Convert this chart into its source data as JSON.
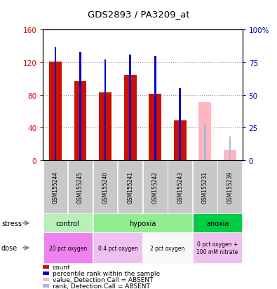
{
  "title": "GDS2893 / PA3209_at",
  "samples": [
    "GSM155244",
    "GSM155245",
    "GSM155240",
    "GSM155241",
    "GSM155242",
    "GSM155243",
    "GSM155231",
    "GSM155239"
  ],
  "count_values": [
    121,
    97,
    83,
    105,
    81,
    49,
    null,
    null
  ],
  "count_absent": [
    null,
    null,
    null,
    null,
    null,
    null,
    71,
    13
  ],
  "percentile_values": [
    87,
    83,
    77,
    81,
    80,
    55,
    null,
    null
  ],
  "percentile_absent": [
    null,
    null,
    null,
    null,
    null,
    null,
    27,
    18
  ],
  "ylim_left": [
    0,
    160
  ],
  "ylim_right": [
    0,
    100
  ],
  "yticks_left": [
    0,
    40,
    80,
    120,
    160
  ],
  "yticks_right": [
    0,
    25,
    50,
    75,
    100
  ],
  "ytick_labels_left": [
    "0",
    "40",
    "80",
    "120",
    "160"
  ],
  "ytick_labels_right": [
    "0",
    "25",
    "50",
    "75",
    "100%"
  ],
  "stress_groups": [
    {
      "label": "control",
      "start": 0,
      "end": 2,
      "color": "#b8f0b8"
    },
    {
      "label": "hypoxia",
      "start": 2,
      "end": 6,
      "color": "#90ee90"
    },
    {
      "label": "anoxia",
      "start": 6,
      "end": 8,
      "color": "#00dd00"
    }
  ],
  "dose_groups": [
    {
      "label": "20 pct oxygen",
      "start": 0,
      "end": 2,
      "color": "#ee82ee"
    },
    {
      "label": "0.4 pct oxygen",
      "start": 2,
      "end": 4,
      "color": "#f0c0f0"
    },
    {
      "label": "2 pct oxygen",
      "start": 4,
      "end": 6,
      "color": "#f8f8f8"
    },
    {
      "label": "0 pct oxygen +\n100 mM nitrate",
      "start": 6,
      "end": 8,
      "color": "#f0c0f0"
    }
  ],
  "bar_width": 0.5,
  "count_color": "#cc1100",
  "percentile_color": "#0000cc",
  "count_absent_color": "#ffb6c1",
  "percentile_absent_color": "#aab8d8",
  "grid_color": "#999999",
  "sample_bg_color": "#c8c8c8",
  "legend_items": [
    {
      "color": "#cc1100",
      "label": "count",
      "marker": "s"
    },
    {
      "color": "#0000cc",
      "label": "percentile rank within the sample",
      "marker": "s"
    },
    {
      "color": "#ffb6c1",
      "label": "value, Detection Call = ABSENT",
      "marker": "s"
    },
    {
      "color": "#aab8d8",
      "label": "rank, Detection Call = ABSENT",
      "marker": "s"
    }
  ]
}
